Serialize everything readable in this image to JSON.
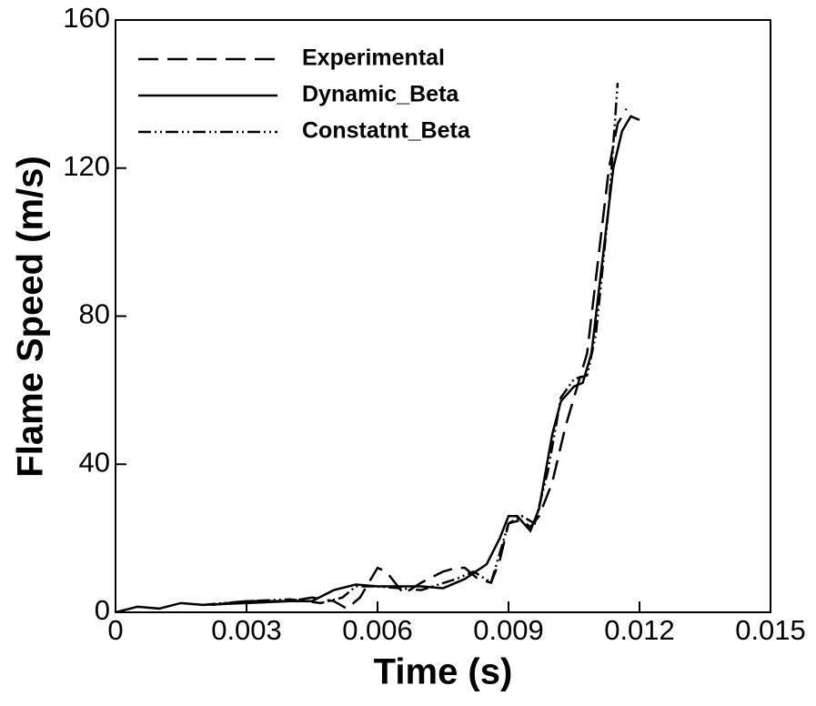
{
  "chart_data": {
    "type": "line",
    "x_label": "Time (s)",
    "y_label": "Flame Speed (m/s)",
    "xlim": [
      0,
      0.015
    ],
    "xticks": [
      0,
      0.003,
      0.006,
      0.009,
      0.012,
      0.015
    ],
    "ylim": [
      0,
      160
    ],
    "yticks": [
      0,
      40,
      80,
      120,
      160
    ],
    "legend": "upper left",
    "series": [
      {
        "name": "Experimental",
        "color": "#000000",
        "dash": "dashed",
        "x": [
          0.0022,
          0.003,
          0.004,
          0.0045,
          0.005,
          0.0053,
          0.0056,
          0.006,
          0.0062,
          0.0066,
          0.007,
          0.0075,
          0.0078,
          0.008,
          0.0083,
          0.0086,
          0.0088,
          0.009,
          0.0093,
          0.0095,
          0.0097,
          0.01,
          0.0103,
          0.0106,
          0.0108,
          0.011,
          0.0113,
          0.0115,
          0.0117
        ],
        "values": [
          2,
          3,
          3,
          4,
          3,
          1,
          4,
          12,
          11,
          5,
          8,
          11,
          12,
          12,
          9,
          8,
          14,
          24,
          25,
          23,
          26,
          35,
          50,
          62,
          70,
          90,
          120,
          132,
          136
        ]
      },
      {
        "name": "Dynamic_Beta",
        "color": "#000000",
        "dash": "solid",
        "x": [
          0,
          0.0005,
          0.001,
          0.0015,
          0.002,
          0.003,
          0.004,
          0.0045,
          0.005,
          0.0055,
          0.006,
          0.007,
          0.0075,
          0.008,
          0.0085,
          0.0088,
          0.009,
          0.0092,
          0.0095,
          0.0097,
          0.01,
          0.0102,
          0.0105,
          0.0107,
          0.0109,
          0.0112,
          0.0114,
          0.0116,
          0.0118,
          0.012
        ],
        "values": [
          0,
          1.5,
          1,
          2.5,
          2,
          2.5,
          3,
          3,
          6,
          7.5,
          7,
          7,
          6.5,
          9,
          13,
          20,
          26,
          26,
          22,
          28,
          48,
          57,
          61,
          62,
          70,
          100,
          120,
          130,
          134,
          133
        ]
      },
      {
        "name": "Constatnt_Beta",
        "color": "#000000",
        "dash": "dashdotdot",
        "x": [
          0.002,
          0.003,
          0.004,
          0.0047,
          0.0052,
          0.0055,
          0.006,
          0.007,
          0.0078,
          0.0082,
          0.0086,
          0.009,
          0.0093,
          0.0096,
          0.0099,
          0.0102,
          0.0105,
          0.0108,
          0.011,
          0.0113,
          0.0115
        ],
        "values": [
          2,
          3,
          3.5,
          2.5,
          4,
          7,
          7,
          6,
          9,
          11,
          8,
          24,
          26,
          24,
          38,
          58,
          63,
          64,
          75,
          110,
          143
        ]
      }
    ]
  }
}
